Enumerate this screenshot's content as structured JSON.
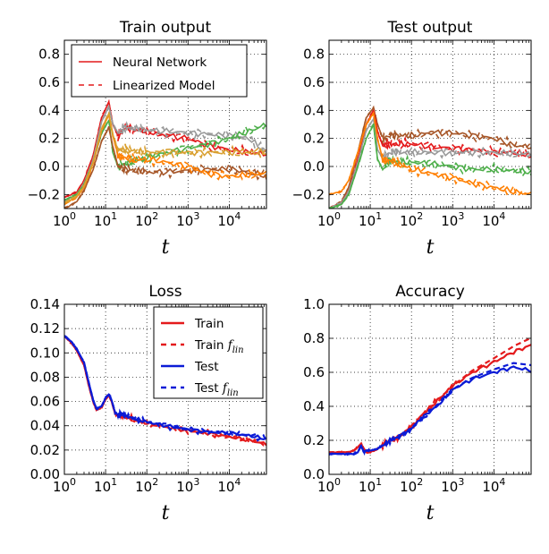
{
  "chart_data": [
    {
      "type": "line",
      "title": "Train output",
      "xlabel": "t",
      "xscale": "log",
      "xlim": [
        1,
        80000
      ],
      "ylim": [
        -0.3,
        0.9
      ],
      "xticks": [
        1,
        10,
        100,
        1000,
        10000
      ],
      "yticks": [
        -0.2,
        0.0,
        0.2,
        0.4,
        0.6,
        0.8
      ],
      "ytick_labels": [
        "−0.2",
        "0.0",
        "0.2",
        "0.4",
        "0.6",
        "0.8"
      ],
      "grid": true,
      "legend": {
        "position": "top",
        "entries": [
          {
            "label": "Neural Network",
            "style": "solid",
            "color": "#e41a1c"
          },
          {
            "label": "Linearized Model",
            "style": "dashed",
            "color": "#e41a1c"
          }
        ]
      },
      "x": [
        1,
        2,
        3,
        5,
        8,
        12,
        15,
        20,
        30,
        50,
        100,
        300,
        1000,
        3000,
        10000,
        30000,
        80000
      ],
      "series": [
        {
          "color": "#e41a1c",
          "values": [
            -0.22,
            -0.18,
            -0.1,
            0.08,
            0.35,
            0.46,
            0.3,
            0.22,
            0.28,
            0.26,
            0.25,
            0.22,
            0.2,
            0.15,
            0.12,
            0.1,
            0.09
          ]
        },
        {
          "color": "#999999",
          "values": [
            -0.25,
            -0.2,
            -0.12,
            0.05,
            0.32,
            0.43,
            0.3,
            0.24,
            0.28,
            0.27,
            0.26,
            0.25,
            0.24,
            0.23,
            0.22,
            0.2,
            0.1
          ]
        },
        {
          "color": "#4daf4a",
          "values": [
            -0.24,
            -0.2,
            -0.13,
            0.03,
            0.24,
            0.33,
            0.1,
            0.0,
            0.02,
            0.04,
            0.06,
            0.1,
            0.13,
            0.16,
            0.2,
            0.25,
            0.3
          ]
        },
        {
          "color": "#a65628",
          "values": [
            -0.3,
            -0.25,
            -0.17,
            -0.02,
            0.18,
            0.28,
            0.14,
            0.0,
            -0.02,
            -0.03,
            -0.04,
            -0.04,
            -0.03,
            -0.02,
            -0.02,
            -0.04,
            -0.07
          ]
        },
        {
          "color": "#ff7f00",
          "values": [
            -0.27,
            -0.22,
            -0.15,
            0.02,
            0.26,
            0.37,
            0.22,
            0.08,
            0.06,
            0.05,
            0.05,
            0.03,
            0.0,
            -0.05,
            -0.07,
            -0.06,
            -0.05
          ]
        },
        {
          "color": "#d9a030",
          "values": [
            -0.26,
            -0.21,
            -0.14,
            0.03,
            0.27,
            0.38,
            0.23,
            0.12,
            0.12,
            0.11,
            0.1,
            0.1,
            0.1,
            0.1,
            0.1,
            0.1,
            0.1
          ]
        }
      ]
    },
    {
      "type": "line",
      "title": "Test output",
      "xlabel": "t",
      "xscale": "log",
      "xlim": [
        1,
        80000
      ],
      "ylim": [
        -0.3,
        0.9
      ],
      "xticks": [
        1,
        10,
        100,
        1000,
        10000
      ],
      "yticks": [
        -0.2,
        0.0,
        0.2,
        0.4,
        0.6,
        0.8
      ],
      "ytick_labels": [
        "−0.2",
        "0.0",
        "0.2",
        "0.4",
        "0.6",
        "0.8"
      ],
      "grid": true,
      "x": [
        1,
        2,
        3,
        5,
        8,
        12,
        15,
        20,
        30,
        50,
        100,
        300,
        1000,
        3000,
        10000,
        30000,
        80000
      ],
      "series": [
        {
          "color": "#a65628",
          "values": [
            -0.3,
            -0.25,
            -0.15,
            0.1,
            0.35,
            0.42,
            0.3,
            0.2,
            0.22,
            0.22,
            0.22,
            0.24,
            0.24,
            0.22,
            0.2,
            0.15,
            0.14
          ]
        },
        {
          "color": "#e41a1c",
          "values": [
            -0.3,
            -0.26,
            -0.18,
            0.05,
            0.3,
            0.4,
            0.25,
            0.15,
            0.16,
            0.16,
            0.16,
            0.14,
            0.13,
            0.12,
            0.1,
            0.1,
            0.08
          ]
        },
        {
          "color": "#999999",
          "values": [
            -0.3,
            -0.26,
            -0.18,
            0.03,
            0.26,
            0.34,
            0.12,
            0.06,
            0.1,
            0.1,
            0.1,
            0.1,
            0.1,
            0.1,
            0.1,
            0.09,
            0.09
          ]
        },
        {
          "color": "#4daf4a",
          "values": [
            -0.3,
            -0.27,
            -0.2,
            0.0,
            0.2,
            0.3,
            0.05,
            -0.02,
            0.04,
            0.03,
            0.03,
            0.02,
            0.0,
            -0.02,
            -0.02,
            -0.03,
            -0.04
          ]
        },
        {
          "color": "#ff7f00",
          "values": [
            -0.2,
            -0.18,
            -0.1,
            0.1,
            0.3,
            0.38,
            0.2,
            0.05,
            0.04,
            0.02,
            -0.02,
            -0.05,
            -0.08,
            -0.12,
            -0.15,
            -0.18,
            -0.2
          ]
        }
      ]
    },
    {
      "type": "line",
      "title": "Loss",
      "xlabel": "t",
      "xscale": "log",
      "xlim": [
        1,
        80000
      ],
      "ylim": [
        0.0,
        0.14
      ],
      "xticks": [
        1,
        10,
        100,
        1000,
        10000
      ],
      "yticks": [
        0.0,
        0.02,
        0.04,
        0.06,
        0.08,
        0.1,
        0.12,
        0.14
      ],
      "ytick_labels": [
        "0.00",
        "0.02",
        "0.04",
        "0.06",
        "0.08",
        "0.10",
        "0.12",
        "0.14"
      ],
      "grid": true,
      "legend": {
        "position": "top-right",
        "entries": [
          {
            "label": "Train",
            "style": "solid",
            "color": "#e41a1c"
          },
          {
            "label": "Train",
            "sub": "lin",
            "style": "dashed",
            "color": "#e41a1c"
          },
          {
            "label": "Test",
            "style": "solid",
            "color": "#0b1bd6"
          },
          {
            "label": "Test",
            "sub": "lin",
            "style": "dashed",
            "color": "#0b1bd6"
          }
        ]
      },
      "x": [
        1,
        1.5,
        2,
        3,
        4,
        5,
        6,
        8,
        10,
        12,
        14,
        17,
        20,
        25,
        30,
        50,
        100,
        300,
        1000,
        3000,
        10000,
        30000,
        80000
      ],
      "series": [
        {
          "name": "Train",
          "color": "#e41a1c",
          "values": [
            0.114,
            0.108,
            0.102,
            0.09,
            0.072,
            0.06,
            0.053,
            0.055,
            0.062,
            0.065,
            0.06,
            0.05,
            0.048,
            0.049,
            0.047,
            0.045,
            0.042,
            0.039,
            0.036,
            0.034,
            0.031,
            0.028,
            0.025
          ]
        },
        {
          "name": "Test",
          "color": "#0b1bd6",
          "values": [
            0.114,
            0.109,
            0.103,
            0.092,
            0.074,
            0.061,
            0.054,
            0.056,
            0.063,
            0.066,
            0.061,
            0.051,
            0.049,
            0.05,
            0.048,
            0.046,
            0.043,
            0.04,
            0.037,
            0.035,
            0.034,
            0.032,
            0.029
          ]
        }
      ]
    },
    {
      "type": "line",
      "title": "Accuracy",
      "xlabel": "t",
      "xscale": "log",
      "xlim": [
        1,
        80000
      ],
      "ylim": [
        0.0,
        1.0
      ],
      "xticks": [
        1,
        10,
        100,
        1000,
        10000
      ],
      "yticks": [
        0.0,
        0.2,
        0.4,
        0.6,
        0.8,
        1.0
      ],
      "ytick_labels": [
        "0.0",
        "0.2",
        "0.4",
        "0.6",
        "0.8",
        "1.0"
      ],
      "grid": true,
      "x": [
        1,
        2,
        3,
        4,
        5,
        6,
        7,
        8,
        10,
        15,
        20,
        30,
        50,
        100,
        200,
        500,
        1000,
        3000,
        10000,
        30000,
        80000
      ],
      "series": [
        {
          "name": "Train",
          "color": "#e41a1c",
          "values": [
            0.13,
            0.13,
            0.13,
            0.14,
            0.16,
            0.18,
            0.15,
            0.13,
            0.13,
            0.15,
            0.17,
            0.2,
            0.22,
            0.28,
            0.36,
            0.45,
            0.52,
            0.6,
            0.66,
            0.72,
            0.76
          ]
        },
        {
          "name": "Test",
          "color": "#0b1bd6",
          "values": [
            0.12,
            0.12,
            0.12,
            0.12,
            0.13,
            0.17,
            0.13,
            0.14,
            0.14,
            0.15,
            0.17,
            0.2,
            0.22,
            0.27,
            0.34,
            0.42,
            0.5,
            0.56,
            0.6,
            0.63,
            0.61
          ]
        }
      ]
    }
  ]
}
